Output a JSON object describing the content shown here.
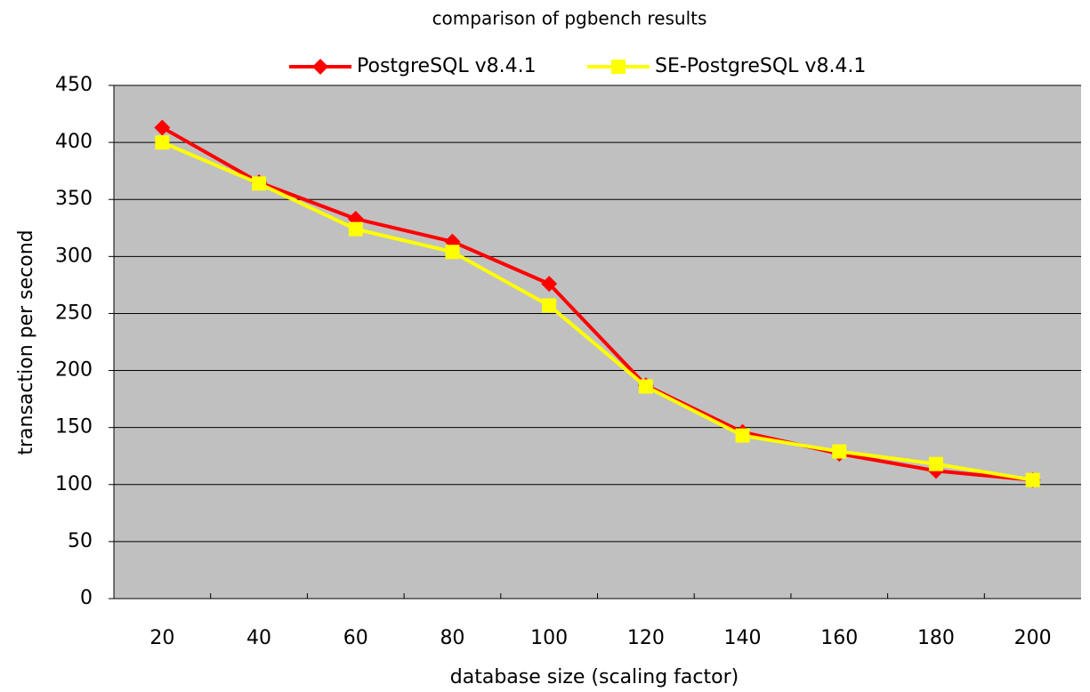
{
  "chart_data": {
    "type": "line",
    "title": "comparison of pgbench results",
    "x_label": "database size (scaling factor)",
    "y_label": "transaction per second",
    "categories": [
      "20",
      "40",
      "60",
      "80",
      "100",
      "120",
      "140",
      "160",
      "180",
      "200"
    ],
    "series": [
      {
        "name": "PostgreSQL v8.4.1",
        "color": "#ff0000",
        "marker": "diamond",
        "values": [
          413,
          365,
          333,
          313,
          276,
          187,
          146,
          127,
          112,
          104
        ]
      },
      {
        "name": "SE-PostgreSQL v8.4.1",
        "color": "#ffff00",
        "marker": "square",
        "values": [
          400,
          364,
          324,
          304,
          257,
          186,
          143,
          129,
          118,
          104
        ]
      }
    ],
    "ylim": [
      0,
      450
    ],
    "yticks": [
      0,
      50,
      100,
      150,
      200,
      250,
      300,
      350,
      400,
      450
    ],
    "grid": true,
    "legend": "top",
    "plot_background": "#c0c0c0"
  }
}
